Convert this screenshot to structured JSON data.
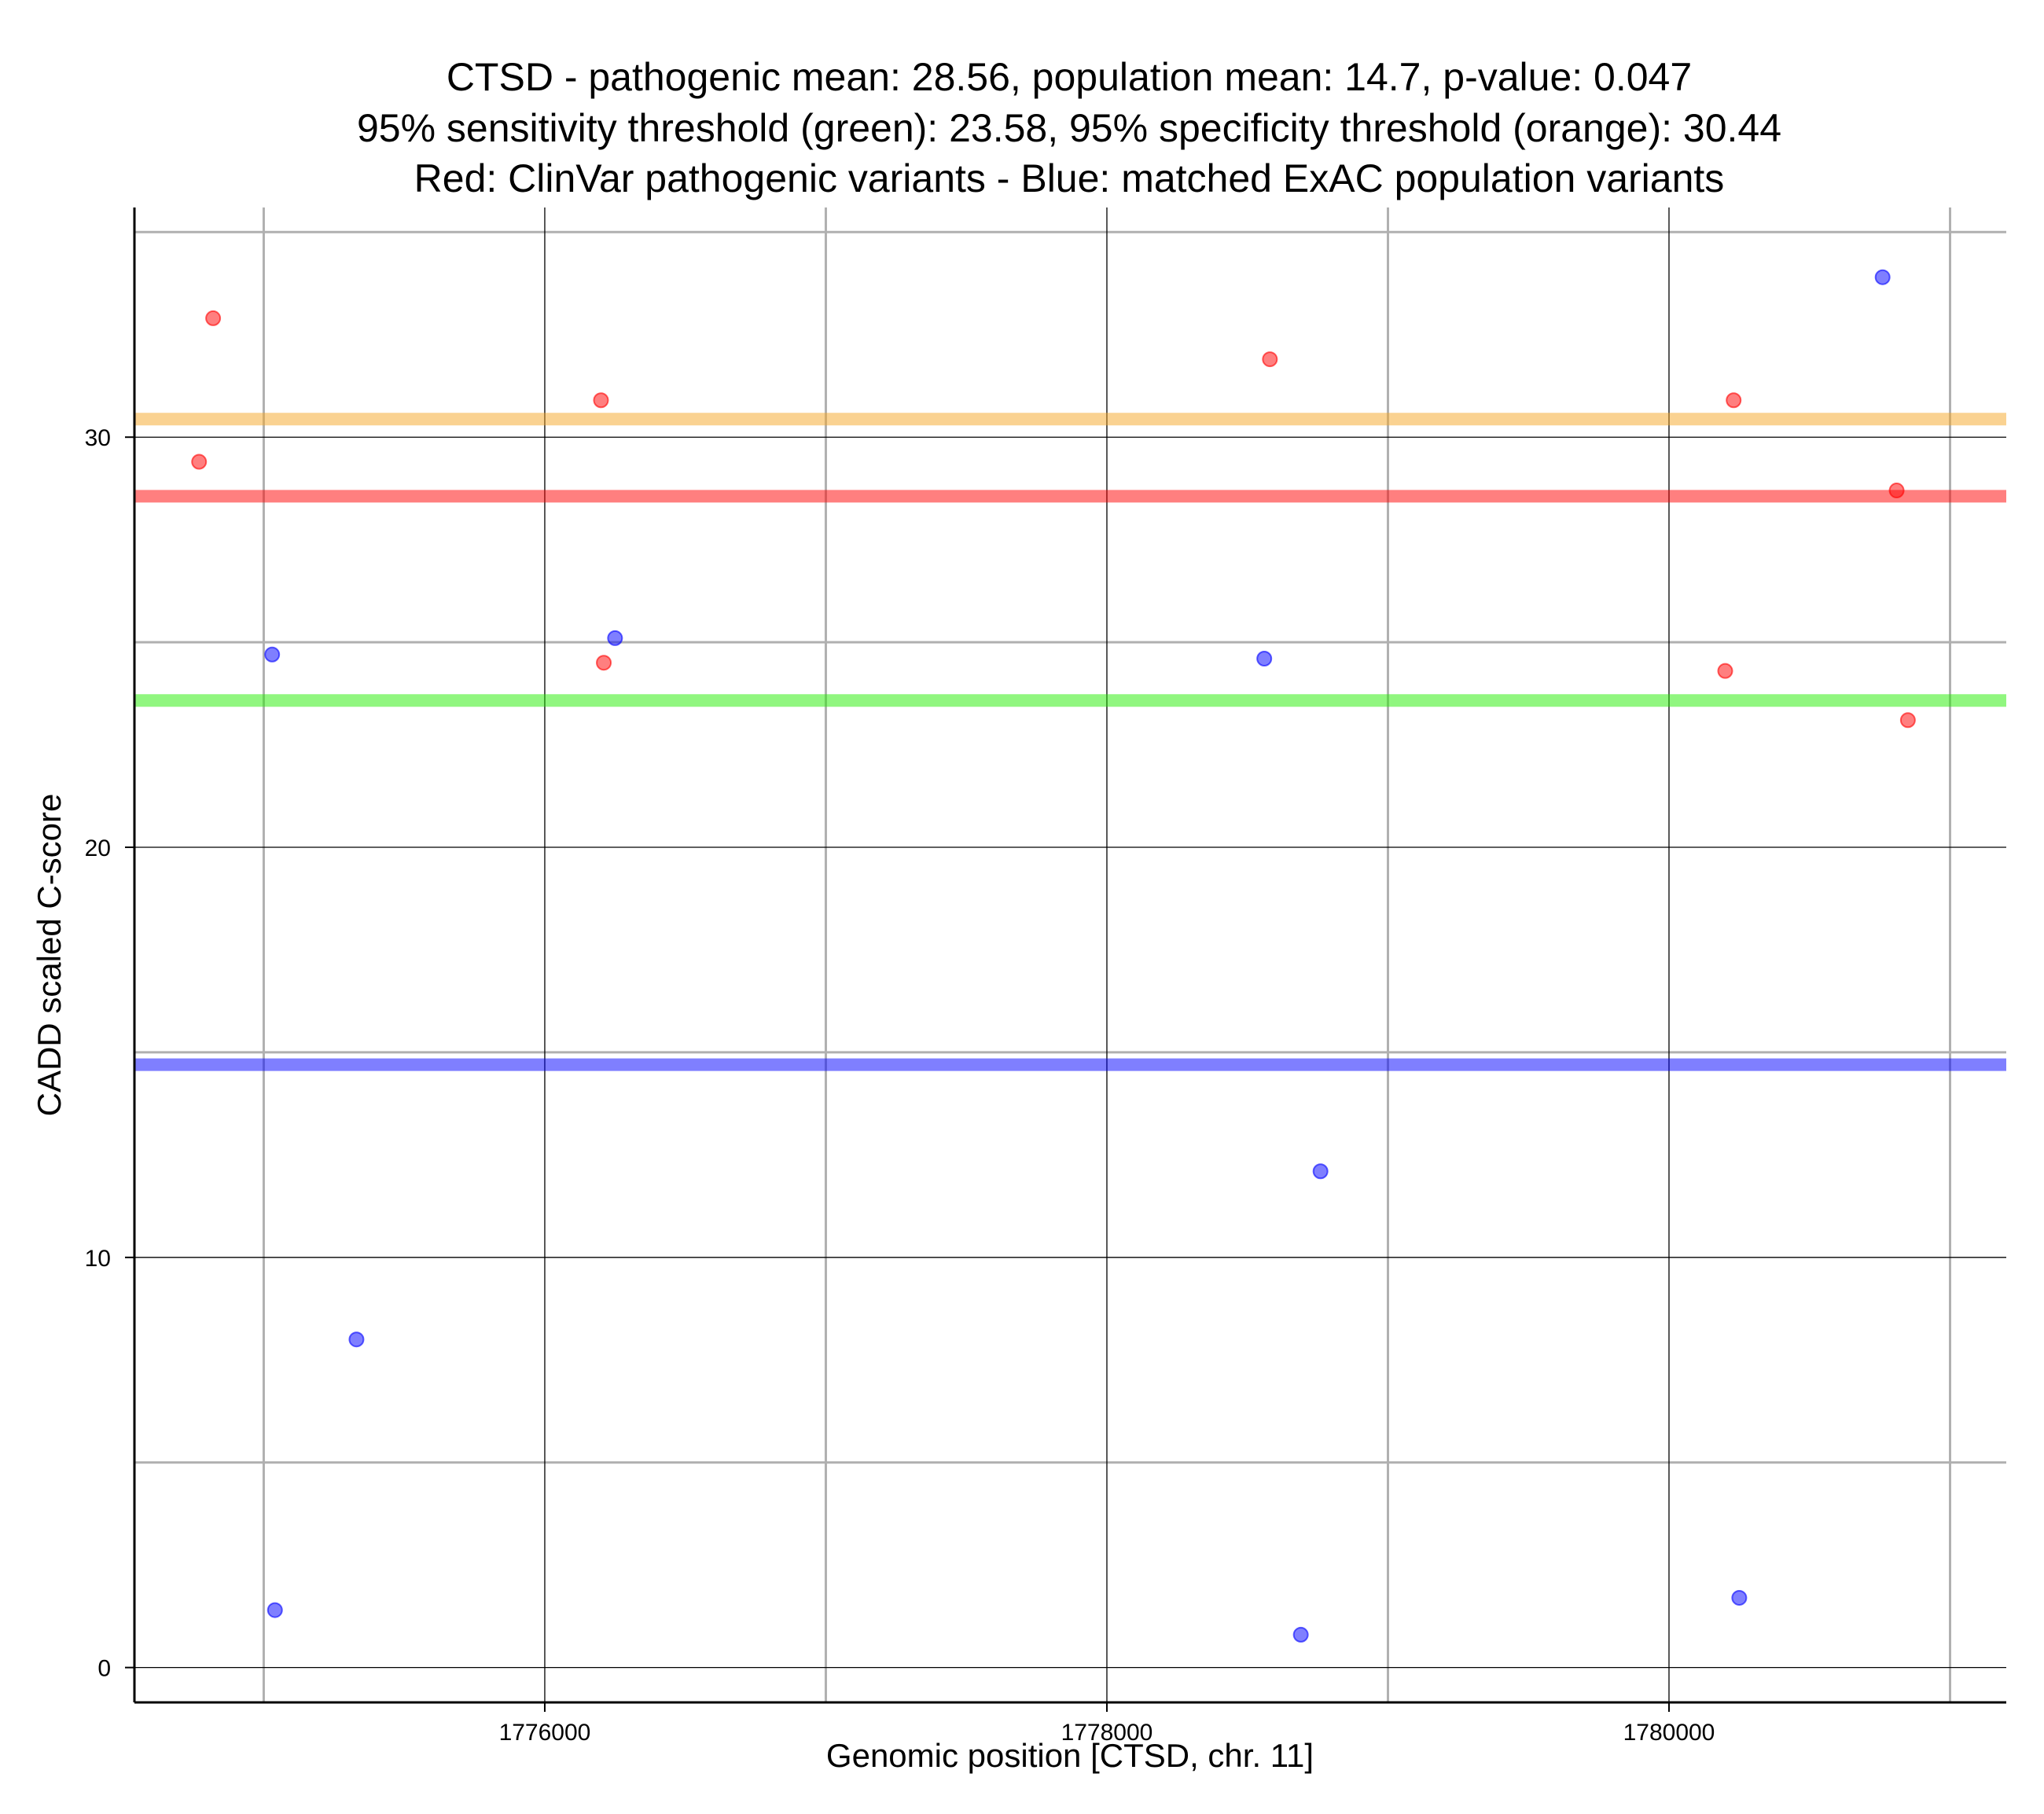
{
  "chart_data": {
    "type": "scatter",
    "title_lines": [
      "CTSD - pathogenic mean: 28.56, population mean: 14.7, p-value: 0.047",
      "95% sensitivity threshold (green): 23.58, 95% specificity threshold (orange): 30.44",
      "Red: ClinVar pathogenic variants - Blue: matched ExAC population variants"
    ],
    "xlabel": "Genomic position [CTSD, chr. 11]",
    "ylabel": "CADD scaled C-score",
    "xlim": [
      1774540,
      1781200
    ],
    "ylim": [
      -0.85,
      35.6
    ],
    "x_ticks": [
      1776000,
      1778000,
      1780000
    ],
    "x_tick_labels": [
      "1776000",
      "1778000",
      "1780000"
    ],
    "x_minor_ticks": [
      1775000,
      1777000,
      1779000,
      1781000
    ],
    "y_ticks": [
      0,
      10,
      20,
      30
    ],
    "y_tick_labels": [
      "0",
      "10",
      "20",
      "30"
    ],
    "y_minor_ticks": [
      5,
      15,
      25,
      35
    ],
    "grid": true,
    "legend": "none",
    "reference_lines": [
      {
        "kind": "specificity threshold",
        "y": 30.44,
        "color": "#f5a623"
      },
      {
        "kind": "pathogenic mean",
        "y": 28.56,
        "color": "#ff0000"
      },
      {
        "kind": "sensitivity threshold",
        "y": 23.58,
        "color": "#22ee00"
      },
      {
        "kind": "population mean",
        "y": 14.7,
        "color": "#0000ff"
      }
    ],
    "series": [
      {
        "group": "ClinVar pathogenic",
        "color": "#ff0000",
        "points": [
          {
            "x": 1774820,
            "y": 32.9
          },
          {
            "x": 1774770,
            "y": 29.4
          },
          {
            "x": 1776200,
            "y": 30.9
          },
          {
            "x": 1776210,
            "y": 24.5
          },
          {
            "x": 1778580,
            "y": 31.9
          },
          {
            "x": 1780230,
            "y": 30.9
          },
          {
            "x": 1780200,
            "y": 24.3
          },
          {
            "x": 1780810,
            "y": 28.7
          },
          {
            "x": 1780850,
            "y": 23.1
          }
        ]
      },
      {
        "group": "ExAC population",
        "color": "#0000ff",
        "points": [
          {
            "x": 1775030,
            "y": 24.7
          },
          {
            "x": 1775040,
            "y": 1.4
          },
          {
            "x": 1775330,
            "y": 8.0
          },
          {
            "x": 1776250,
            "y": 25.1
          },
          {
            "x": 1778560,
            "y": 24.6
          },
          {
            "x": 1778760,
            "y": 12.1
          },
          {
            "x": 1778690,
            "y": 0.8
          },
          {
            "x": 1780250,
            "y": 1.7
          },
          {
            "x": 1780760,
            "y": 33.9
          }
        ]
      }
    ]
  }
}
